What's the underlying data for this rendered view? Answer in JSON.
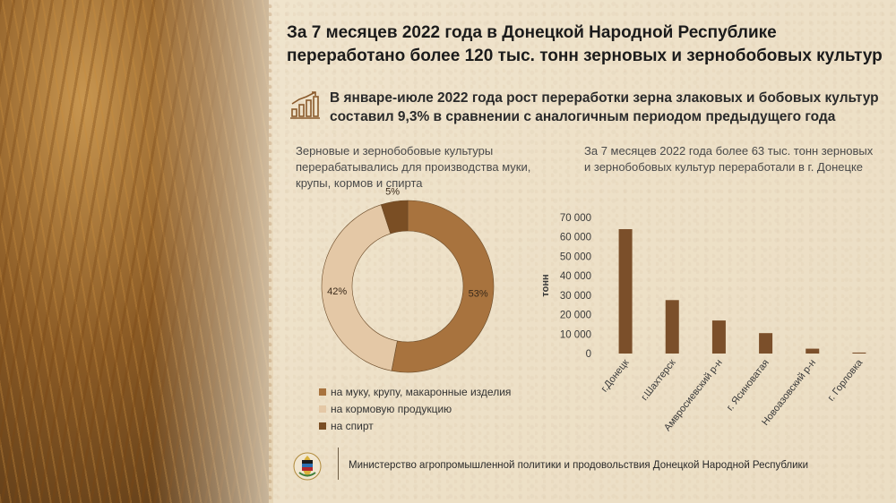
{
  "title": {
    "line1": "За 7 месяцев 2022 года в Донецкой Народной Республике",
    "line2": "переработано более 120 тыс. тонн зерновых и зернобобовых культур"
  },
  "highlight": {
    "icon": "growth-chart-icon",
    "line1": "В январе-июле 2022 года рост переработки зерна злаковых и бобовых культур",
    "line2": "составил 9,3% в сравнении с аналогичным периодом предыдущего года"
  },
  "left_panel": {
    "description": "Зерновые и зернобобовые культуры перерабатывались для производства муки, крупы, кормов и спирта"
  },
  "right_panel": {
    "description": "За 7 месяцев 2022 года более 63 тыс. тонн зерновых и зернобобовых культур переработали в г. Донецке"
  },
  "colors": {
    "flour": "#a8733e",
    "feed": "#e4c8a6",
    "spirit": "#7a4e24",
    "bar": "#7b4f2a",
    "axis_text": "#3a3a3a"
  },
  "chart_data": [
    {
      "type": "pie",
      "categories": [
        "на муку, крупу, макаронные изделия",
        "на кормовую продукцию",
        "на спирт"
      ],
      "values": [
        53,
        42,
        5
      ],
      "value_labels": [
        "53%",
        "42%",
        "5%"
      ],
      "legend_placement": "bottom"
    },
    {
      "type": "bar",
      "categories": [
        "г.Донецк",
        "г.Шахтерск",
        "Амвросиевский р-н",
        "г. Ясиноватая",
        "Новоазовский р-н",
        "г. Горловка"
      ],
      "values": [
        64000,
        27500,
        17000,
        10500,
        2500,
        500
      ],
      "ylabel": "тонн",
      "ylim": [
        0,
        70000
      ],
      "y_ticks": [
        0,
        10000,
        20000,
        30000,
        40000,
        50000,
        60000,
        70000
      ],
      "y_tick_labels": [
        "0",
        "10 000",
        "20 000",
        "30 000",
        "40 000",
        "50 000",
        "60 000",
        "70 000"
      ],
      "grid": false
    }
  ],
  "footer": {
    "logo": "ministry-emblem-icon",
    "text": "Министерство агропромышленной политики и продовольствия Донецкой Народной Республики"
  }
}
